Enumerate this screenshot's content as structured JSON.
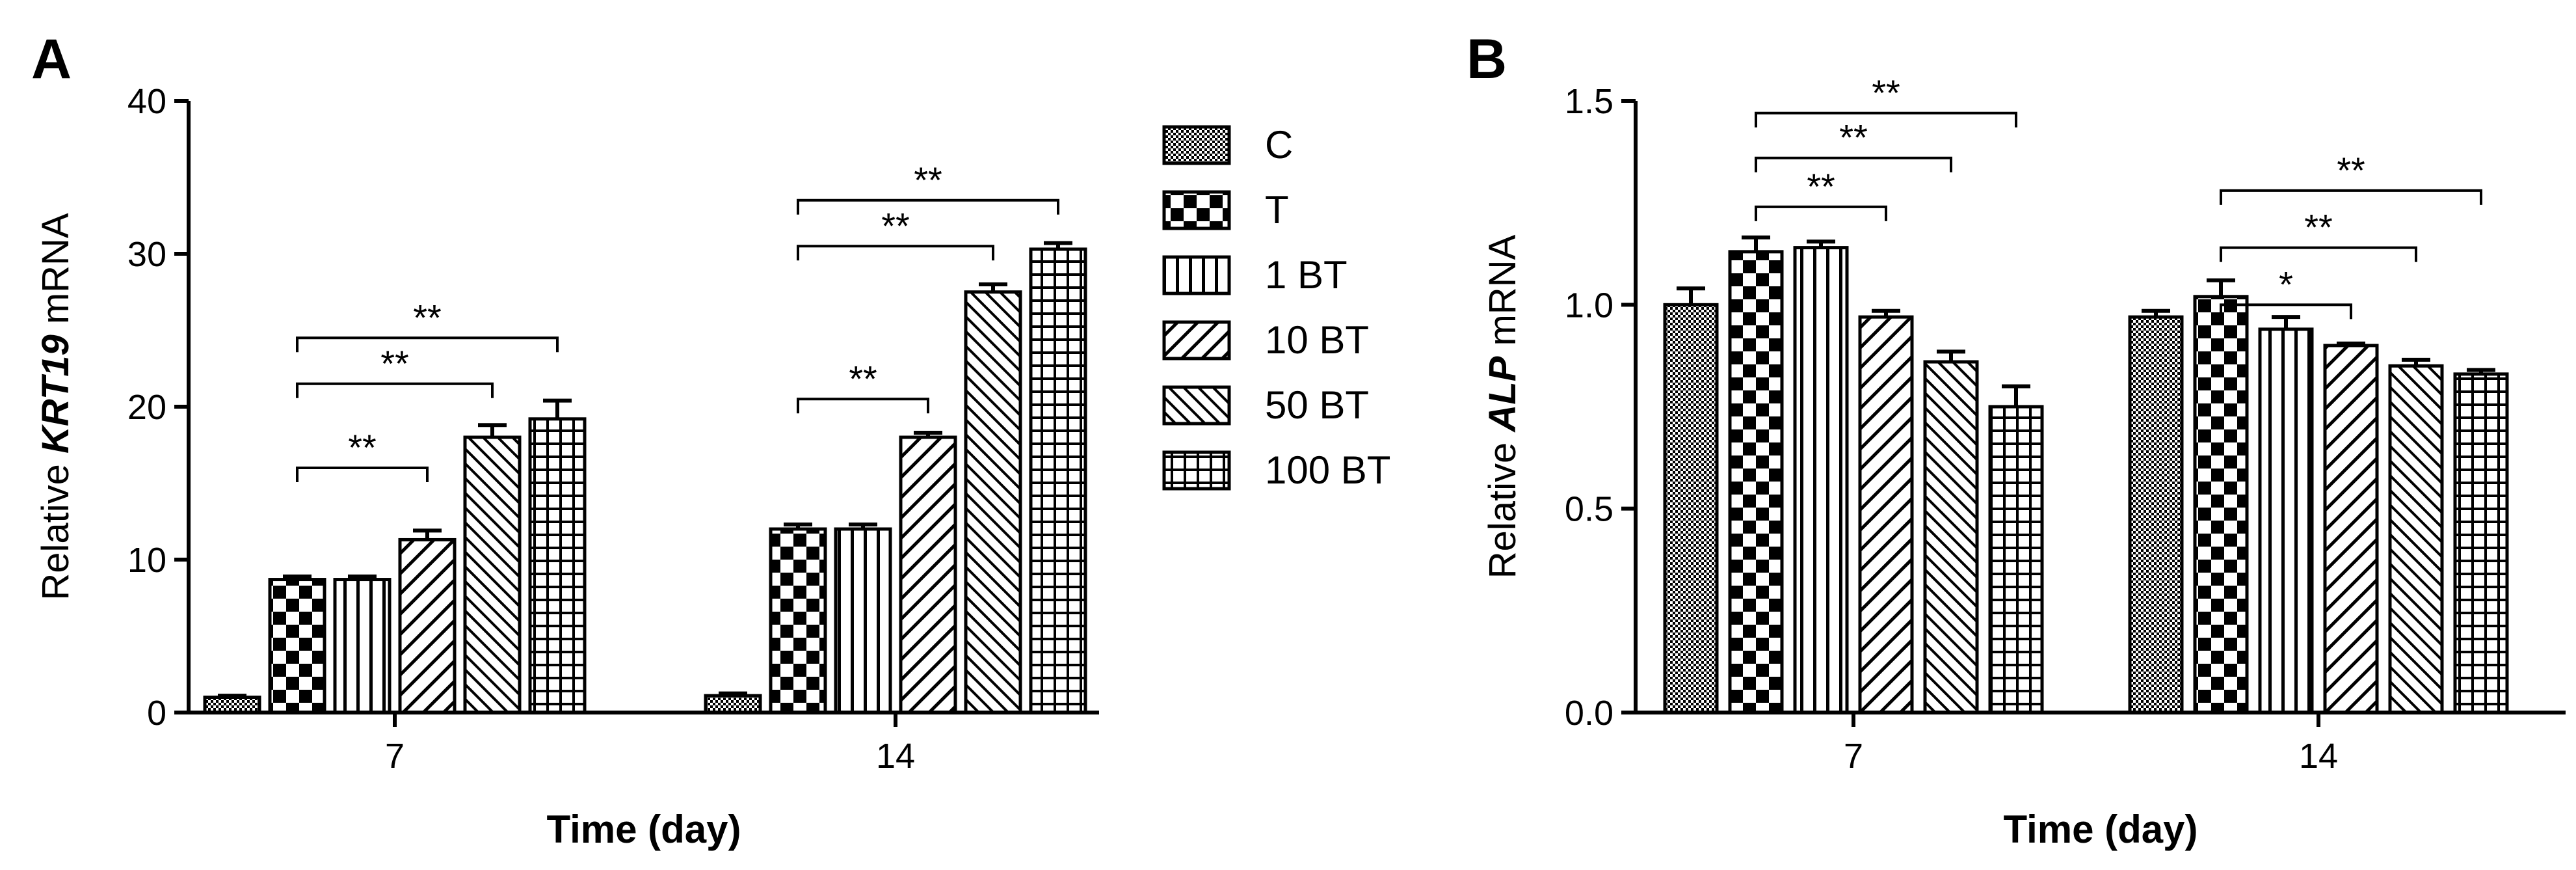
{
  "legend": [
    {
      "label": "C",
      "pattern": "pat-c"
    },
    {
      "label": "T",
      "pattern": "pat-t"
    },
    {
      "label": "1 BT",
      "pattern": "pat-1bt"
    },
    {
      "label": "10 BT",
      "pattern": "pat-10bt"
    },
    {
      "label": "50 BT",
      "pattern": "pat-50bt"
    },
    {
      "label": "100 BT",
      "pattern": "pat-100bt"
    }
  ],
  "chart_data": [
    {
      "panel": "A",
      "type": "bar",
      "categories": [
        "7",
        "14"
      ],
      "xlabel": "Time (day)",
      "ylabel_parts": [
        "Relative ",
        "KRT19",
        " mRNA"
      ],
      "ylim": [
        0,
        40
      ],
      "yticks": [
        0,
        10,
        20,
        30,
        40
      ],
      "ytick_labels": [
        "0",
        "10",
        "20",
        "30",
        "40"
      ],
      "series": [
        {
          "name": "C",
          "values": [
            1.0,
            1.1
          ],
          "errors": [
            0.1,
            0.15
          ]
        },
        {
          "name": "T",
          "values": [
            8.7,
            12.0
          ],
          "errors": [
            0.2,
            0.3
          ]
        },
        {
          "name": "1 BT",
          "values": [
            8.7,
            12.0
          ],
          "errors": [
            0.2,
            0.3
          ]
        },
        {
          "name": "10 BT",
          "values": [
            11.3,
            18.0
          ],
          "errors": [
            0.6,
            0.3
          ]
        },
        {
          "name": "50 BT",
          "values": [
            18.0,
            27.5
          ],
          "errors": [
            0.8,
            0.5
          ]
        },
        {
          "name": "100 BT",
          "values": [
            19.2,
            30.3
          ],
          "errors": [
            1.2,
            0.4
          ]
        }
      ],
      "annotations": [
        {
          "group": 0,
          "from": 1,
          "to": 3,
          "level": 16,
          "label": "**"
        },
        {
          "group": 0,
          "from": 1,
          "to": 4,
          "level": 21.5,
          "label": "**"
        },
        {
          "group": 0,
          "from": 1,
          "to": 5,
          "level": 24.5,
          "label": "**"
        },
        {
          "group": 1,
          "from": 1,
          "to": 3,
          "level": 20.5,
          "label": "**"
        },
        {
          "group": 1,
          "from": 1,
          "to": 4,
          "level": 30.5,
          "label": "**"
        },
        {
          "group": 1,
          "from": 1,
          "to": 5,
          "level": 33.5,
          "label": "**"
        }
      ]
    },
    {
      "panel": "B",
      "type": "bar",
      "categories": [
        "7",
        "14"
      ],
      "xlabel": "Time (day)",
      "ylabel_parts": [
        "Relative ",
        "ALP",
        " mRNA"
      ],
      "ylim": [
        0,
        1.5
      ],
      "yticks": [
        0,
        0.5,
        1.0,
        1.5
      ],
      "ytick_labels": [
        "0.0",
        "0.5",
        "1.0",
        "1.5"
      ],
      "series": [
        {
          "name": "C",
          "values": [
            1.0,
            0.97
          ],
          "errors": [
            0.04,
            0.015
          ]
        },
        {
          "name": "T",
          "values": [
            1.13,
            1.02
          ],
          "errors": [
            0.035,
            0.04
          ]
        },
        {
          "name": "1 BT",
          "values": [
            1.14,
            0.94
          ],
          "errors": [
            0.015,
            0.03
          ]
        },
        {
          "name": "10 BT",
          "values": [
            0.97,
            0.9
          ],
          "errors": [
            0.015,
            0.005
          ]
        },
        {
          "name": "50 BT",
          "values": [
            0.86,
            0.85
          ],
          "errors": [
            0.025,
            0.015
          ]
        },
        {
          "name": "100 BT",
          "values": [
            0.75,
            0.83
          ],
          "errors": [
            0.05,
            0.01
          ]
        }
      ],
      "annotations": [
        {
          "group": 0,
          "from": 1,
          "to": 3,
          "level": 1.24,
          "label": "**"
        },
        {
          "group": 0,
          "from": 1,
          "to": 4,
          "level": 1.36,
          "label": "**"
        },
        {
          "group": 0,
          "from": 1,
          "to": 5,
          "level": 1.47,
          "label": "**"
        },
        {
          "group": 1,
          "from": 1,
          "to": 3,
          "level": 1.0,
          "label": "*"
        },
        {
          "group": 1,
          "from": 1,
          "to": 4,
          "level": 1.14,
          "label": "**"
        },
        {
          "group": 1,
          "from": 1,
          "to": 5,
          "level": 1.28,
          "label": "**"
        }
      ]
    }
  ]
}
